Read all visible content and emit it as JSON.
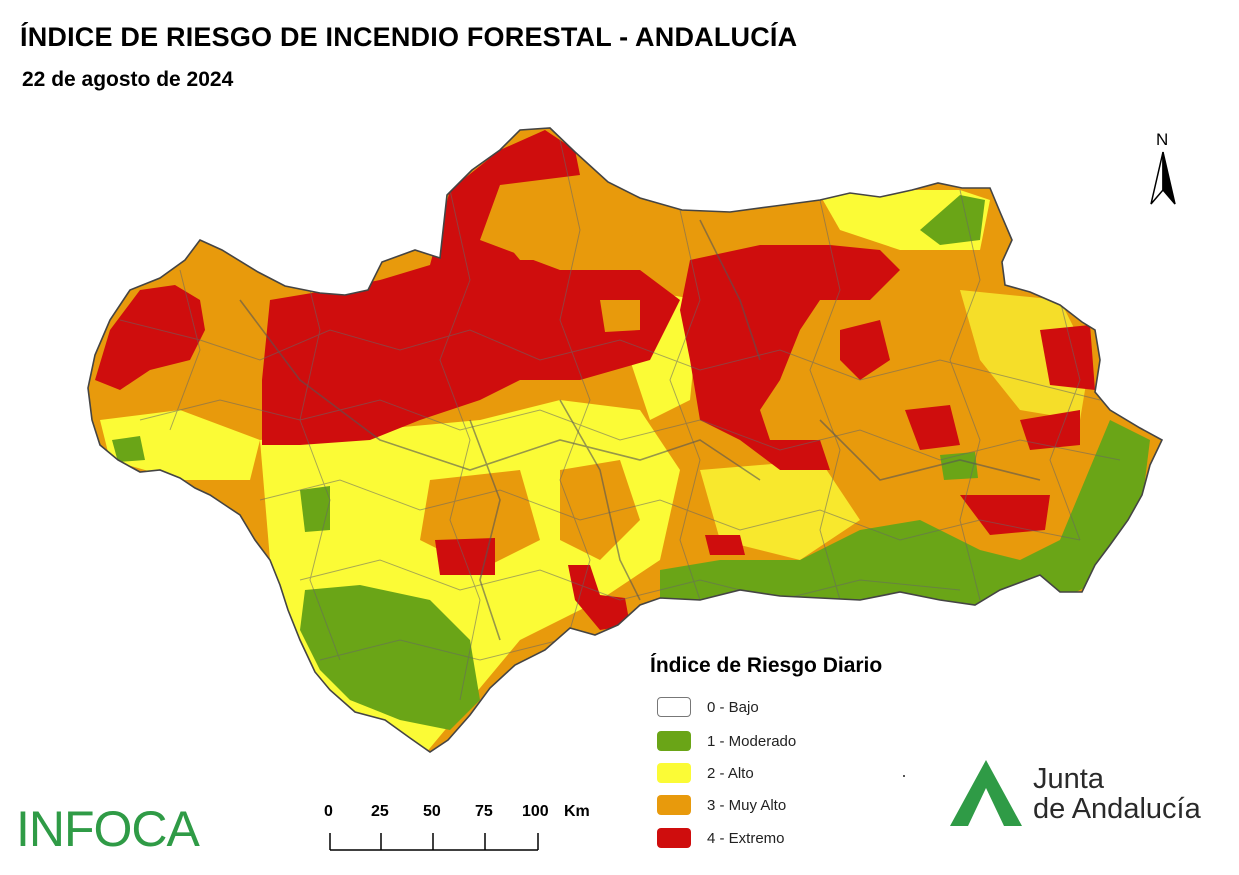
{
  "title": "ÍNDICE DE RIESGO DE INCENDIO FORESTAL - ANDALUCÍA",
  "date": "22 de agosto de 2024",
  "north_label": "N",
  "legend": {
    "title": "Índice de Riesgo Diario",
    "items": [
      {
        "label": "0 - Bajo",
        "color": "#ffffff"
      },
      {
        "label": "1 - Moderado",
        "color": "#6aa517"
      },
      {
        "label": "2 - Alto",
        "color": "#fbfb36"
      },
      {
        "label": "3 - Muy Alto",
        "color": "#e89a0c"
      },
      {
        "label": "4 - Extremo",
        "color": "#cf0d0d"
      }
    ]
  },
  "scale": {
    "ticks": [
      "0",
      "25",
      "50",
      "75",
      "100"
    ],
    "unit": "Km"
  },
  "logos": {
    "infoca": "INFOCA",
    "junta_line1": "Junta",
    "junta_line2": "de Andalucía"
  }
}
